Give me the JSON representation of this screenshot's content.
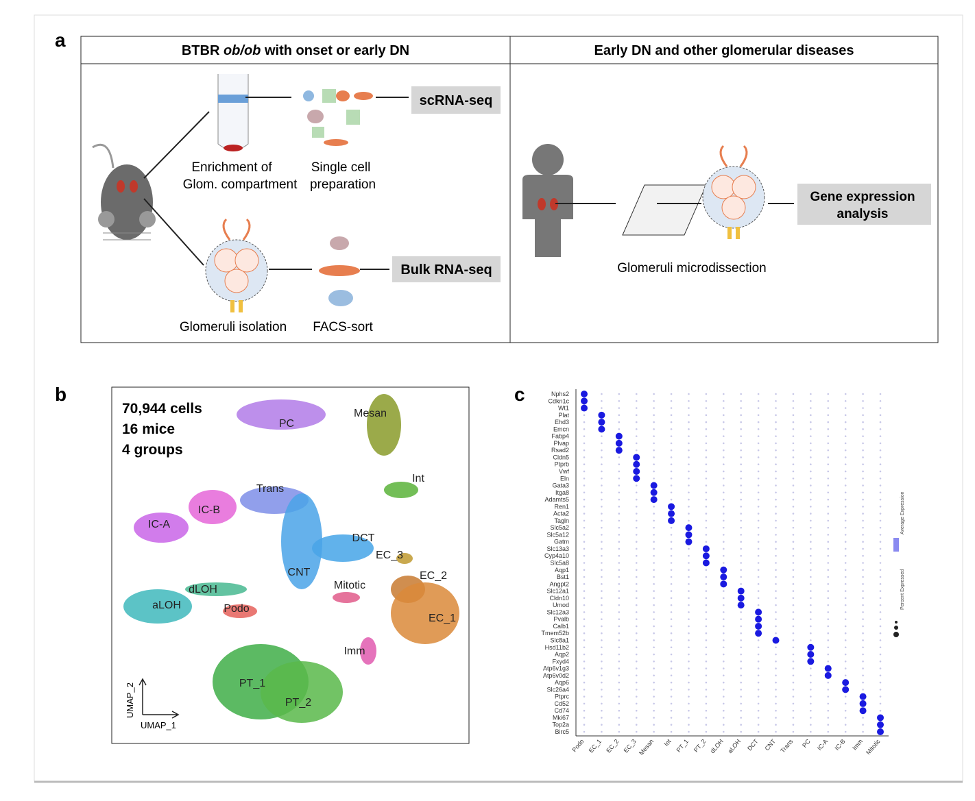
{
  "panel_a": {
    "letter": "a",
    "left": {
      "title": [
        "BTBR ",
        "ob/ob",
        " with onset or early DN"
      ],
      "enrichment": [
        "Enrichment of",
        "Glom. compartment"
      ],
      "single_cell": [
        "Single cell",
        "preparation"
      ],
      "scrna": "scRNA-seq",
      "isolation": "Glomeruli isolation",
      "facs": "FACS-sort",
      "bulk": "Bulk RNA-seq"
    },
    "right": {
      "title": "Early DN and other glomerular diseases",
      "microdissection": "Glomeruli microdissection",
      "gene_expression": [
        "Gene expression",
        "analysis"
      ]
    }
  },
  "panel_b": {
    "letter": "b",
    "summary": [
      "70,944 cells",
      "16 mice",
      "4 groups"
    ],
    "clusters": [
      "PC",
      "Mesan",
      "Int",
      "Trans",
      "IC-B",
      "IC-A",
      "DCT",
      "EC_3",
      "EC_2",
      "EC_1",
      "CNT",
      "Mitotic",
      "dLOH",
      "aLOH",
      "Podo",
      "Imm",
      "PT_1",
      "PT_2"
    ],
    "x_axis": "UMAP_1",
    "y_axis": "UMAP_2"
  },
  "panel_c": {
    "letter": "c",
    "clusters": [
      {
        "name": "Podo",
        "genes": [
          "Nphs2",
          "Cdkn1c",
          "Wt1"
        ]
      },
      {
        "name": "EC_1",
        "genes": [
          "Plat",
          "Ehd3",
          "Emcn"
        ]
      },
      {
        "name": "EC_2",
        "genes": [
          "Fabp4",
          "Plvap",
          "Rsad2"
        ]
      },
      {
        "name": "EC_3",
        "genes": [
          "Cldn5",
          "Ptprb",
          "Vwf",
          "Eln"
        ]
      },
      {
        "name": "Mesan",
        "genes": [
          "Gata3",
          "Itga8",
          "Adamts5"
        ]
      },
      {
        "name": "Int",
        "genes": [
          "Ren1",
          "Acta2",
          "Tagln"
        ]
      },
      {
        "name": "PT_1",
        "genes": [
          "Slc5a2",
          "Slc5a12",
          "Gatm"
        ]
      },
      {
        "name": "PT_2",
        "genes": [
          "Slc13a3",
          "Cyp4a10",
          "Slc5a8"
        ]
      },
      {
        "name": "dLOH",
        "genes": [
          "Aqp1",
          "Bst1",
          "Angpt2"
        ]
      },
      {
        "name": "aLOH",
        "genes": [
          "Slc12a1",
          "Cldn10",
          "Umod"
        ]
      },
      {
        "name": "DCT",
        "genes": [
          "Slc12a3",
          "Pvalb",
          "Calb1",
          "Tmem52b"
        ]
      },
      {
        "name": "CNT",
        "genes": [
          "Slc8a1"
        ]
      },
      {
        "name": "Trans",
        "genes": []
      },
      {
        "name": "PC",
        "genes": [
          "Hsd11b2",
          "Aqp2",
          "Fxyd4"
        ]
      },
      {
        "name": "IC-A",
        "genes": [
          "Atp6v1g3",
          "Atp6v0d2"
        ]
      },
      {
        "name": "IC-B",
        "genes": [
          "Aqp6",
          "Slc26a4"
        ]
      },
      {
        "name": "Imm",
        "genes": [
          "Ptprc",
          "Cd52",
          "Cd74"
        ]
      },
      {
        "name": "Mitotic",
        "genes": [
          "Mki67",
          "Top2a",
          "Birc5"
        ]
      }
    ],
    "legend": [
      "Average Expression",
      "Percent Expressed"
    ]
  }
}
